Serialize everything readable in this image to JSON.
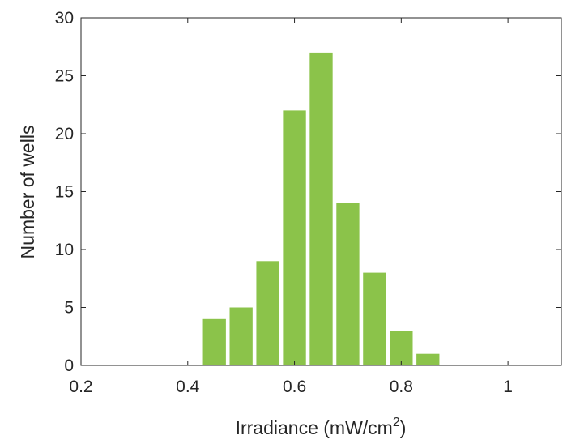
{
  "chart_data": {
    "type": "bar",
    "title": "",
    "xlabel": "Irradiance (mW/cm",
    "xlabel_superscript": "2",
    "xlabel_close": ")",
    "ylabel": "Number of wells",
    "xlim": [
      0.2,
      1.1
    ],
    "ylim": [
      0,
      30
    ],
    "xticks": [
      0.2,
      0.4,
      0.6,
      0.8,
      1
    ],
    "xtick_labels": [
      "0.2",
      "0.4",
      "0.6",
      "0.8",
      "1"
    ],
    "yticks": [
      0,
      5,
      10,
      15,
      20,
      25,
      30
    ],
    "ytick_labels": [
      "0",
      "5",
      "10",
      "15",
      "20",
      "25",
      "30"
    ],
    "bin_width": 0.05,
    "bar_color": "#8bc34a",
    "grid": false,
    "legend": "none",
    "bars": [
      {
        "x": 0.45,
        "value": 4
      },
      {
        "x": 0.5,
        "value": 5
      },
      {
        "x": 0.55,
        "value": 9
      },
      {
        "x": 0.6,
        "value": 22
      },
      {
        "x": 0.65,
        "value": 27
      },
      {
        "x": 0.7,
        "value": 14
      },
      {
        "x": 0.75,
        "value": 8
      },
      {
        "x": 0.8,
        "value": 3
      },
      {
        "x": 0.85,
        "value": 1
      }
    ]
  }
}
